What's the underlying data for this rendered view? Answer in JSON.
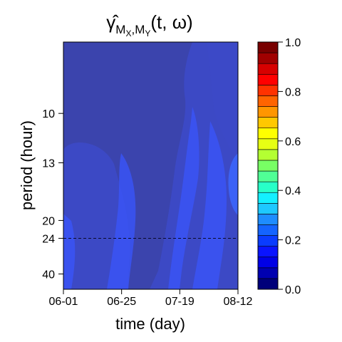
{
  "chart_data": {
    "type": "heatmap",
    "title": {
      "prefix": "γ̂",
      "sub_main": "M",
      "sub_x": "X",
      "sub_sep": ",M",
      "sub_y": "Y",
      "suffix": "(t, ω)"
    },
    "xlabel": "time (day)",
    "ylabel": "period (hour)",
    "x_ticks": [
      "06-01",
      "06-25",
      "07-19",
      "08-12"
    ],
    "y_ticks": [
      "10",
      "13",
      "20",
      "24",
      "40"
    ],
    "y_tick_values": [
      10,
      13,
      20,
      24,
      40
    ],
    "y_scale": "reciprocal",
    "ylim_period_hours": [
      7.5,
      56
    ],
    "reference_line_period": 24,
    "reference_line_style": "dashed",
    "colorbar": {
      "ticks": [
        "0.0",
        "0.2",
        "0.4",
        "0.6",
        "0.8",
        "1.0"
      ],
      "range": [
        0,
        1
      ],
      "levels": 20,
      "colors": [
        "#00007a",
        "#0000b0",
        "#0000e6",
        "#0a14ff",
        "#0a3cff",
        "#1464ff",
        "#1e8cff",
        "#1ec8ff",
        "#14f0ff",
        "#28ffc8",
        "#50ff96",
        "#78ff64",
        "#b4ff32",
        "#e6ff14",
        "#ffff00",
        "#ffc800",
        "#ff9600",
        "#ff6400",
        "#ff3200",
        "#ff0000"
      ],
      "top_colors": [
        "#d70000",
        "#a00000",
        "#780000"
      ]
    },
    "field_colors": {
      "background": "#3c49c5",
      "dark_region": "#3b44ad",
      "medium_region": "#3c49c7",
      "bright_region": "#3954f4",
      "brightest_region": "#3b62f6"
    },
    "coherence_summary": "mostly 0.15-0.30"
  }
}
